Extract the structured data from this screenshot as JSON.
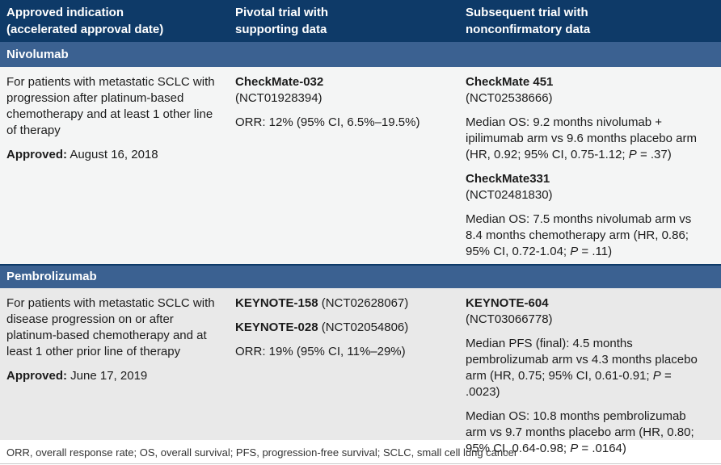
{
  "colors": {
    "header_bg": "#0e3a68",
    "band_bg": "#3b6191",
    "row1_bg": "#f4f5f5",
    "row2_bg": "#e9e9e9",
    "text": "#1c1c1c",
    "footnote_text": "#333333",
    "hairline": "#c9c9c9"
  },
  "header": {
    "col1": "Approved indication\n(accelerated approval date)",
    "col2": "Pivotal trial with\nsupporting data",
    "col3": "Subsequent trial with\nnonconfirmatory data"
  },
  "sections": {
    "nivolumab": {
      "name": "Nivolumab",
      "indication": "For patients with metastatic SCLC with progression after platinum-based chemotherapy and at least 1 other line of therapy",
      "approved": [
        {
          "t": "Approved:",
          "b": true
        },
        {
          "t": " August 16, 2018"
        }
      ],
      "pivotal": {
        "name": "CheckMate-032",
        "id": "(NCT01928394)",
        "orr": "ORR: 12% (95% CI, 6.5%–19.5%)"
      },
      "subsequent": [
        {
          "name": "CheckMate 451",
          "id": "(NCT02538666)",
          "result": [
            {
              "t": "Median OS: 9.2 months nivolumab + ipilimumab arm vs 9.6 months placebo arm (HR, 0.92; 95% CI, 0.75-1.12; "
            },
            {
              "t": "P",
              "i": true
            },
            {
              "t": " = .37)"
            }
          ]
        },
        {
          "name": "CheckMate331",
          "id": "(NCT02481830)",
          "result": [
            {
              "t": "Median OS: 7.5 months nivolumab arm vs 8.4 months chemotherapy arm (HR, 0.86; 95% CI, 0.72-1.04; "
            },
            {
              "t": "P",
              "i": true
            },
            {
              "t": " = .11)"
            }
          ]
        }
      ]
    },
    "pembrolizumab": {
      "name": "Pembrolizumab",
      "indication": "For patients with metastatic SCLC with disease progression on or after platinum-based chemotherapy and at least 1 other prior line of therapy",
      "approved": [
        {
          "t": "Approved:",
          "b": true
        },
        {
          "t": " June 17, 2019"
        }
      ],
      "pivotal": {
        "line1": [
          {
            "t": "KEYNOTE-158",
            "b": true
          },
          {
            "t": " (NCT02628067)"
          }
        ],
        "line2": [
          {
            "t": "KEYNOTE-028",
            "b": true
          },
          {
            "t": " (NCT02054806)"
          }
        ],
        "orr": "ORR: 19% (95% CI, 11%–29%)"
      },
      "subsequent": {
        "name": "KEYNOTE-604",
        "id": "(NCT03066778)",
        "result1": [
          {
            "t": "Median PFS (final): 4.5 months pembrolizumab arm vs 4.3 months placebo arm (HR, 0.75; 95% CI, 0.61-0.91; "
          },
          {
            "t": "P",
            "i": true
          },
          {
            "t": " = .0023)"
          }
        ],
        "result2": [
          {
            "t": "Median OS: 10.8 months pembrolizumab arm vs 9.7 months placebo arm (HR, 0.80; 95% CI, 0.64-0.98; "
          },
          {
            "t": "P",
            "i": true
          },
          {
            "t": " = .0164)"
          }
        ]
      }
    }
  },
  "footer": "ORR, overall response rate; OS, overall survival; PFS, progression-free survival; SCLC, small cell lung cancer"
}
